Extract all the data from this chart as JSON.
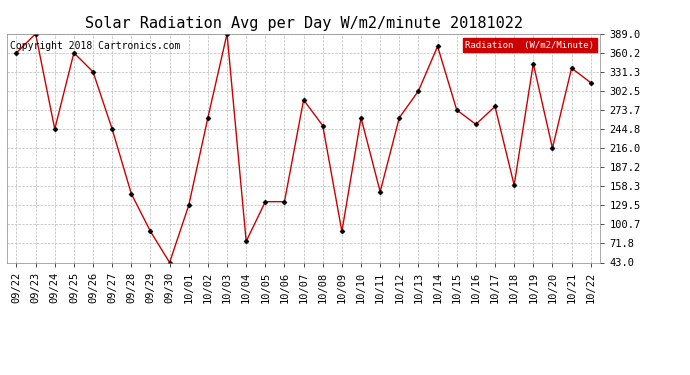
{
  "title": "Solar Radiation Avg per Day W/m2/minute 20181022",
  "copyright": "Copyright 2018 Cartronics.com",
  "legend_label": "Radiation  (W/m2/Minute)",
  "legend_bg": "#cc0000",
  "legend_text_color": "#ffffff",
  "dates": [
    "09/22",
    "09/23",
    "09/24",
    "09/25",
    "09/26",
    "09/27",
    "09/28",
    "09/29",
    "09/30",
    "10/01",
    "10/02",
    "10/03",
    "10/04",
    "10/05",
    "10/06",
    "10/07",
    "10/08",
    "10/09",
    "10/10",
    "10/11",
    "10/12",
    "10/13",
    "10/14",
    "10/15",
    "10/16",
    "10/17",
    "10/18",
    "10/19",
    "10/20",
    "10/21",
    "10/22"
  ],
  "values": [
    360.2,
    389.0,
    244.8,
    360.2,
    331.3,
    244.8,
    147.0,
    90.0,
    43.0,
    129.5,
    262.0,
    389.0,
    75.0,
    135.0,
    135.0,
    289.0,
    250.0,
    90.0,
    262.0,
    150.0,
    262.0,
    302.5,
    370.0,
    273.7,
    252.0,
    279.0,
    160.0,
    344.0,
    216.0,
    337.0,
    315.0
  ],
  "line_color": "#cc0000",
  "marker_color": "#000000",
  "bg_color": "#ffffff",
  "plot_bg_color": "#ffffff",
  "grid_color": "#bbbbbb",
  "yticks": [
    43.0,
    71.8,
    100.7,
    129.5,
    158.3,
    187.2,
    216.0,
    244.8,
    273.7,
    302.5,
    331.3,
    360.2,
    389.0
  ],
  "ylim": [
    43.0,
    389.0
  ],
  "title_fontsize": 11,
  "tick_fontsize": 7.5,
  "copyright_fontsize": 7
}
